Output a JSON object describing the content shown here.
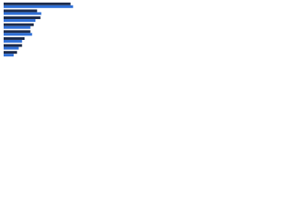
{
  "chart_data": {
    "type": "hbar",
    "categories": [
      null,
      null,
      null,
      null,
      null,
      null,
      null,
      null
    ],
    "series": [
      {
        "color": "#1b2a4a",
        "values": [
          80,
          40,
          44,
          36,
          32,
          25,
          22,
          16
        ]
      },
      {
        "color": "#2f6fd6",
        "values": [
          83,
          45,
          38,
          32,
          34,
          22,
          18,
          12
        ]
      }
    ],
    "xlim": [
      0,
      100
    ]
  }
}
